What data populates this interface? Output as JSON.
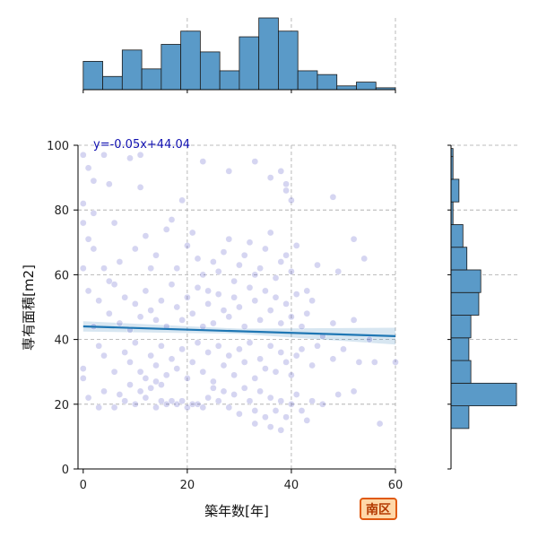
{
  "chart_data": {
    "type": "scatter",
    "xlabel": "築年数[年]",
    "ylabel": "専有面積[m2]",
    "xlim": [
      -1,
      60
    ],
    "ylim": [
      0,
      100
    ],
    "xticks": [
      0,
      20,
      40,
      60
    ],
    "yticks": [
      0,
      20,
      40,
      60,
      80,
      100
    ],
    "grid": true,
    "point_color": "#4040c0",
    "regression": {
      "label": "y=-0.05x+44.04",
      "slope": -0.05,
      "intercept": 44.04,
      "color": "#1f77b4",
      "label_color": "#1010b0"
    },
    "points": [
      [
        0,
        97
      ],
      [
        1,
        93
      ],
      [
        2,
        89
      ],
      [
        4,
        97
      ],
      [
        5,
        88
      ],
      [
        9,
        96
      ],
      [
        11,
        97
      ],
      [
        0,
        82
      ],
      [
        0,
        76
      ],
      [
        2,
        79
      ],
      [
        6,
        76
      ],
      [
        11,
        87
      ],
      [
        19,
        83
      ],
      [
        23,
        95
      ],
      [
        28,
        92
      ],
      [
        33,
        95
      ],
      [
        36,
        90
      ],
      [
        38,
        92
      ],
      [
        39,
        86
      ],
      [
        40,
        83
      ],
      [
        48,
        84
      ],
      [
        39,
        88
      ],
      [
        1,
        71
      ],
      [
        2,
        68
      ],
      [
        4,
        62
      ],
      [
        5,
        58
      ],
      [
        6,
        57
      ],
      [
        7,
        64
      ],
      [
        10,
        68
      ],
      [
        12,
        72
      ],
      [
        13,
        62
      ],
      [
        14,
        66
      ],
      [
        16,
        74
      ],
      [
        17,
        77
      ],
      [
        18,
        62
      ],
      [
        20,
        69
      ],
      [
        21,
        73
      ],
      [
        22,
        65
      ],
      [
        23,
        60
      ],
      [
        24,
        55
      ],
      [
        25,
        64
      ],
      [
        26,
        61
      ],
      [
        27,
        67
      ],
      [
        28,
        71
      ],
      [
        29,
        58
      ],
      [
        30,
        63
      ],
      [
        31,
        66
      ],
      [
        32,
        70
      ],
      [
        33,
        60
      ],
      [
        34,
        62
      ],
      [
        35,
        68
      ],
      [
        36,
        73
      ],
      [
        37,
        59
      ],
      [
        38,
        64
      ],
      [
        39,
        66
      ],
      [
        40,
        61
      ],
      [
        41,
        69
      ],
      [
        43,
        55
      ],
      [
        45,
        63
      ],
      [
        49,
        61
      ],
      [
        52,
        71
      ],
      [
        54,
        65
      ],
      [
        0,
        62
      ],
      [
        1,
        55
      ],
      [
        3,
        52
      ],
      [
        5,
        48
      ],
      [
        7,
        45
      ],
      [
        8,
        53
      ],
      [
        9,
        43
      ],
      [
        10,
        51
      ],
      [
        11,
        47
      ],
      [
        12,
        55
      ],
      [
        13,
        49
      ],
      [
        14,
        46
      ],
      [
        15,
        52
      ],
      [
        16,
        44
      ],
      [
        17,
        57
      ],
      [
        18,
        50
      ],
      [
        19,
        46
      ],
      [
        20,
        53
      ],
      [
        21,
        48
      ],
      [
        22,
        56
      ],
      [
        23,
        44
      ],
      [
        24,
        51
      ],
      [
        25,
        45
      ],
      [
        26,
        54
      ],
      [
        27,
        49
      ],
      [
        28,
        47
      ],
      [
        29,
        53
      ],
      [
        30,
        50
      ],
      [
        31,
        44
      ],
      [
        32,
        56
      ],
      [
        33,
        52
      ],
      [
        34,
        46
      ],
      [
        35,
        55
      ],
      [
        36,
        49
      ],
      [
        37,
        53
      ],
      [
        38,
        45
      ],
      [
        39,
        51
      ],
      [
        40,
        47
      ],
      [
        41,
        54
      ],
      [
        42,
        44
      ],
      [
        43,
        48
      ],
      [
        44,
        52
      ],
      [
        46,
        41
      ],
      [
        48,
        45
      ],
      [
        52,
        46
      ],
      [
        55,
        40
      ],
      [
        2,
        44
      ],
      [
        3,
        38
      ],
      [
        4,
        35
      ],
      [
        6,
        30
      ],
      [
        8,
        36
      ],
      [
        9,
        33
      ],
      [
        10,
        39
      ],
      [
        11,
        30
      ],
      [
        12,
        28
      ],
      [
        13,
        35
      ],
      [
        14,
        32
      ],
      [
        15,
        38
      ],
      [
        16,
        29
      ],
      [
        17,
        34
      ],
      [
        18,
        31
      ],
      [
        19,
        37
      ],
      [
        20,
        28
      ],
      [
        21,
        33
      ],
      [
        22,
        39
      ],
      [
        23,
        30
      ],
      [
        24,
        36
      ],
      [
        25,
        27
      ],
      [
        26,
        38
      ],
      [
        27,
        32
      ],
      [
        28,
        35
      ],
      [
        29,
        29
      ],
      [
        30,
        37
      ],
      [
        31,
        33
      ],
      [
        32,
        39
      ],
      [
        33,
        28
      ],
      [
        34,
        34
      ],
      [
        35,
        31
      ],
      [
        36,
        38
      ],
      [
        37,
        30
      ],
      [
        38,
        36
      ],
      [
        39,
        33
      ],
      [
        40,
        29
      ],
      [
        41,
        35
      ],
      [
        42,
        37
      ],
      [
        44,
        32
      ],
      [
        45,
        38
      ],
      [
        48,
        34
      ],
      [
        50,
        37
      ],
      [
        53,
        33
      ],
      [
        56,
        33
      ],
      [
        60,
        33
      ],
      [
        0,
        28
      ],
      [
        0,
        31
      ],
      [
        1,
        22
      ],
      [
        3,
        19
      ],
      [
        4,
        24
      ],
      [
        6,
        19
      ],
      [
        7,
        23
      ],
      [
        8,
        21
      ],
      [
        9,
        26
      ],
      [
        10,
        20
      ],
      [
        11,
        24
      ],
      [
        12,
        22
      ],
      [
        13,
        25
      ],
      [
        14,
        19
      ],
      [
        15,
        21
      ],
      [
        16,
        20
      ],
      [
        17,
        21
      ],
      [
        18,
        20
      ],
      [
        19,
        21
      ],
      [
        20,
        19
      ],
      [
        21,
        20
      ],
      [
        22,
        20
      ],
      [
        23,
        19
      ],
      [
        24,
        22
      ],
      [
        25,
        25
      ],
      [
        26,
        21
      ],
      [
        27,
        24
      ],
      [
        28,
        19
      ],
      [
        29,
        23
      ],
      [
        30,
        17
      ],
      [
        31,
        25
      ],
      [
        32,
        21
      ],
      [
        33,
        18
      ],
      [
        34,
        24
      ],
      [
        35,
        16
      ],
      [
        36,
        22
      ],
      [
        37,
        18
      ],
      [
        38,
        21
      ],
      [
        39,
        16
      ],
      [
        40,
        20
      ],
      [
        41,
        23
      ],
      [
        42,
        18
      ],
      [
        44,
        21
      ],
      [
        46,
        20
      ],
      [
        49,
        23
      ],
      [
        52,
        24
      ],
      [
        57,
        14
      ],
      [
        43,
        15
      ],
      [
        33,
        14
      ],
      [
        36,
        13
      ],
      [
        38,
        12
      ],
      [
        15,
        26
      ],
      [
        14,
        27
      ]
    ],
    "hist_x": {
      "bin_edges": [
        0,
        3.75,
        7.5,
        11.25,
        15,
        18.75,
        22.5,
        26.25,
        30,
        33.75,
        37.5,
        41.25,
        45,
        48.75,
        52.5,
        56.25,
        60
      ],
      "counts": [
        15,
        7,
        21,
        11,
        24,
        31,
        20,
        10,
        28,
        38,
        31,
        10,
        8,
        2,
        4,
        1
      ]
    },
    "hist_y": {
      "bin_edges": [
        12.5,
        19.5,
        26.5,
        33.5,
        40.5,
        47.5,
        54.5,
        61.5,
        68.5,
        75.5,
        82.5,
        89.5,
        96.5,
        99
      ],
      "counts": [
        9,
        33,
        10,
        9,
        10,
        14,
        15,
        8,
        6,
        1,
        4,
        1,
        1
      ]
    }
  },
  "badge": {
    "label": "南区",
    "fill": "#ffd8a8",
    "border": "#e05a10",
    "text_color": "#b33a00"
  }
}
